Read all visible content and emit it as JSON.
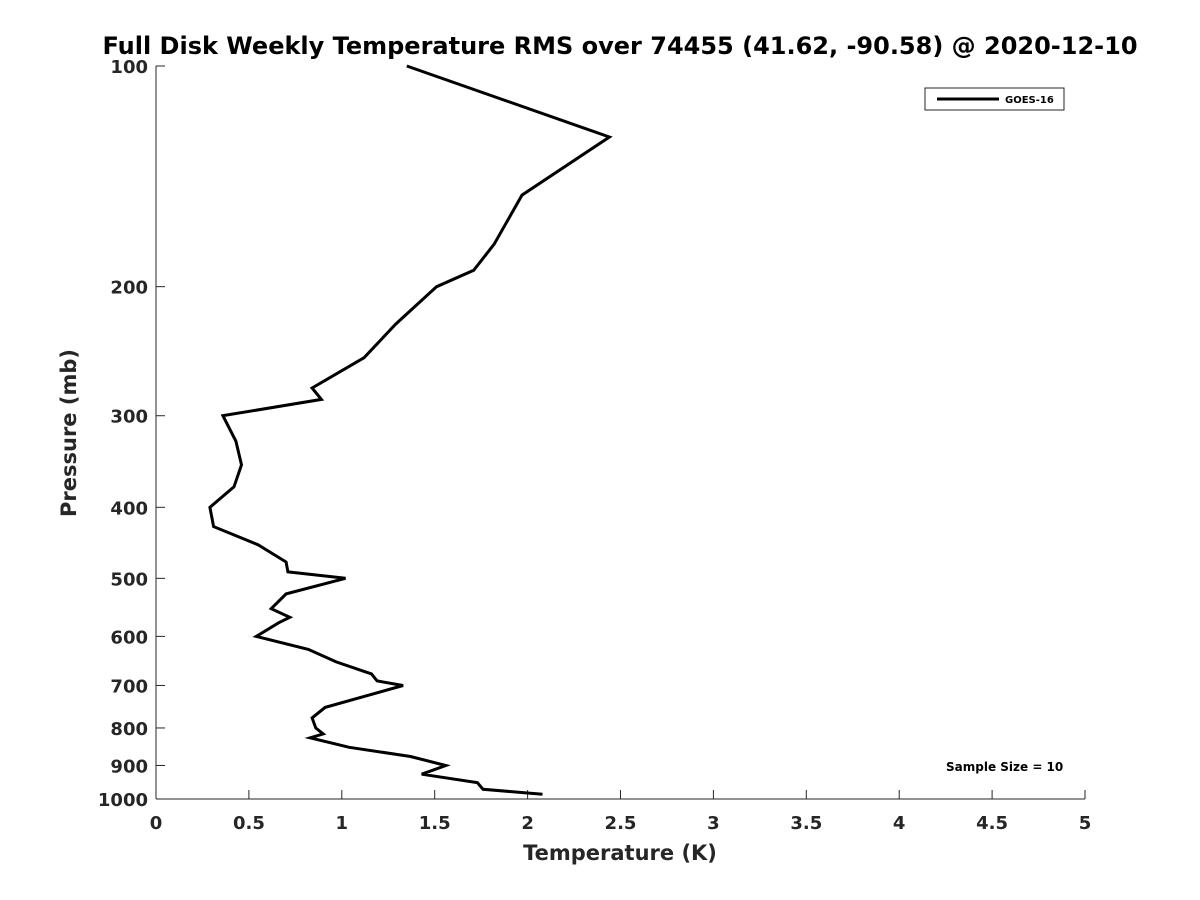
{
  "chart_data": {
    "type": "line",
    "title": "Full Disk Weekly Temperature RMS over 74455 (41.62, -90.58) @ 2020-12-10",
    "xlabel": "Temperature (K)",
    "ylabel": "Pressure (mb)",
    "xlim": [
      0,
      5
    ],
    "ylim": [
      100,
      1000
    ],
    "y_scale": "log",
    "y_reversed": true,
    "grid": false,
    "legend_position": "top-right",
    "x_ticks": [
      "0",
      "0.5",
      "1",
      "1.5",
      "2",
      "2.5",
      "3",
      "3.5",
      "4",
      "4.5",
      "5"
    ],
    "y_ticks": [
      "100",
      "200",
      "300",
      "400",
      "500",
      "600",
      "700",
      "800",
      "900",
      "1000"
    ],
    "series": [
      {
        "name": "GOES-16",
        "color": "#000000",
        "points": [
          [
            1.35,
            100
          ],
          [
            2.44,
            125
          ],
          [
            1.97,
            150
          ],
          [
            1.82,
            175
          ],
          [
            1.71,
            190
          ],
          [
            1.51,
            200
          ],
          [
            1.29,
            225
          ],
          [
            1.12,
            250
          ],
          [
            0.84,
            275
          ],
          [
            0.89,
            285
          ],
          [
            0.36,
            300
          ],
          [
            0.43,
            325
          ],
          [
            0.46,
            350
          ],
          [
            0.42,
            375
          ],
          [
            0.29,
            400
          ],
          [
            0.31,
            425
          ],
          [
            0.55,
            450
          ],
          [
            0.7,
            475
          ],
          [
            0.71,
            490
          ],
          [
            1.02,
            500
          ],
          [
            0.7,
            525
          ],
          [
            0.62,
            550
          ],
          [
            0.72,
            565
          ],
          [
            0.66,
            575
          ],
          [
            0.54,
            600
          ],
          [
            0.82,
            625
          ],
          [
            0.97,
            650
          ],
          [
            1.16,
            675
          ],
          [
            1.19,
            690
          ],
          [
            1.33,
            700
          ],
          [
            0.91,
            750
          ],
          [
            0.84,
            775
          ],
          [
            0.86,
            800
          ],
          [
            0.9,
            815
          ],
          [
            0.83,
            825
          ],
          [
            1.04,
            850
          ],
          [
            1.37,
            875
          ],
          [
            1.56,
            900
          ],
          [
            1.43,
            925
          ],
          [
            1.73,
            950
          ],
          [
            1.76,
            970
          ],
          [
            2.08,
            985
          ]
        ]
      }
    ],
    "annotation": "Sample Size = 10"
  }
}
